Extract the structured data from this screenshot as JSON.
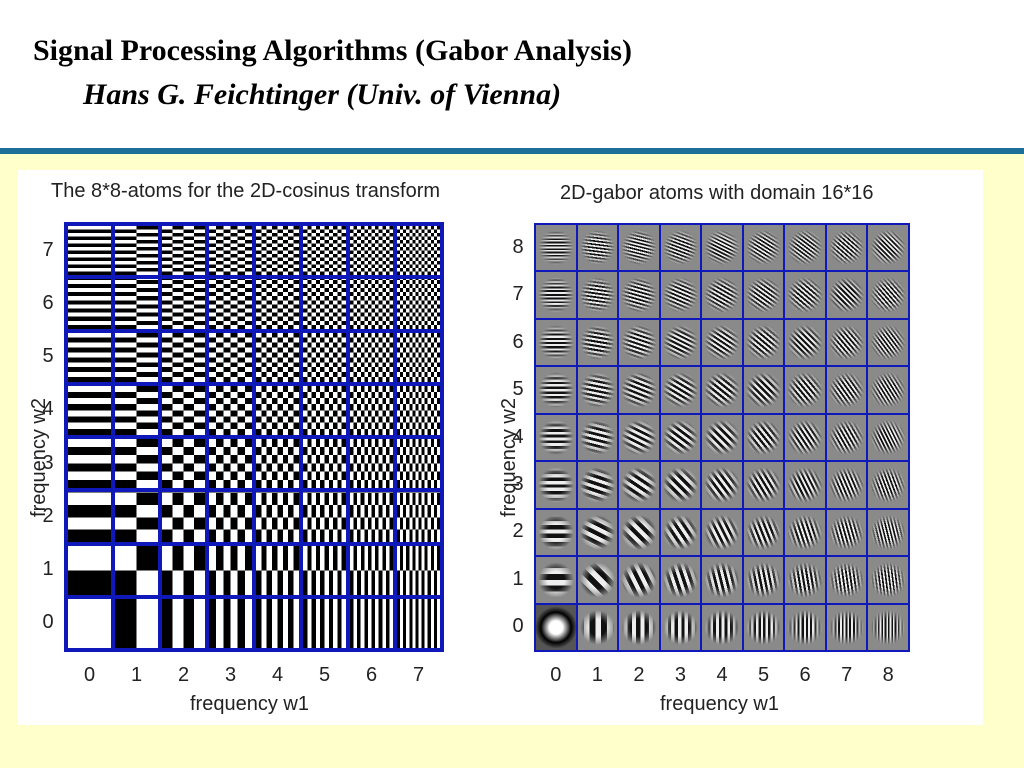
{
  "header": {
    "title": "Signal Processing Algorithms (Gabor Analysis)",
    "subtitle": "Hans G. Feichtinger (Univ. of Vienna)"
  },
  "colors": {
    "rule": "#1d6f9a",
    "background": "#ffffcc",
    "grid_lines": "#0f18b8"
  },
  "left_panel": {
    "title": "The 8*8-atoms for the 2D-cosinus transform",
    "xlabel": "frequency w1",
    "ylabel": "frequency w2",
    "x_ticks": [
      "0",
      "1",
      "2",
      "3",
      "4",
      "5",
      "6",
      "7"
    ],
    "y_ticks": [
      "0",
      "1",
      "2",
      "3",
      "4",
      "5",
      "6",
      "7"
    ]
  },
  "right_panel": {
    "title": "2D-gabor atoms with domain 16*16",
    "xlabel": "frequency w1",
    "ylabel": "frequency w2",
    "x_ticks": [
      "0",
      "1",
      "2",
      "3",
      "4",
      "5",
      "6",
      "7",
      "8"
    ],
    "y_ticks": [
      "0",
      "1",
      "2",
      "3",
      "4",
      "5",
      "6",
      "7",
      "8"
    ]
  }
}
